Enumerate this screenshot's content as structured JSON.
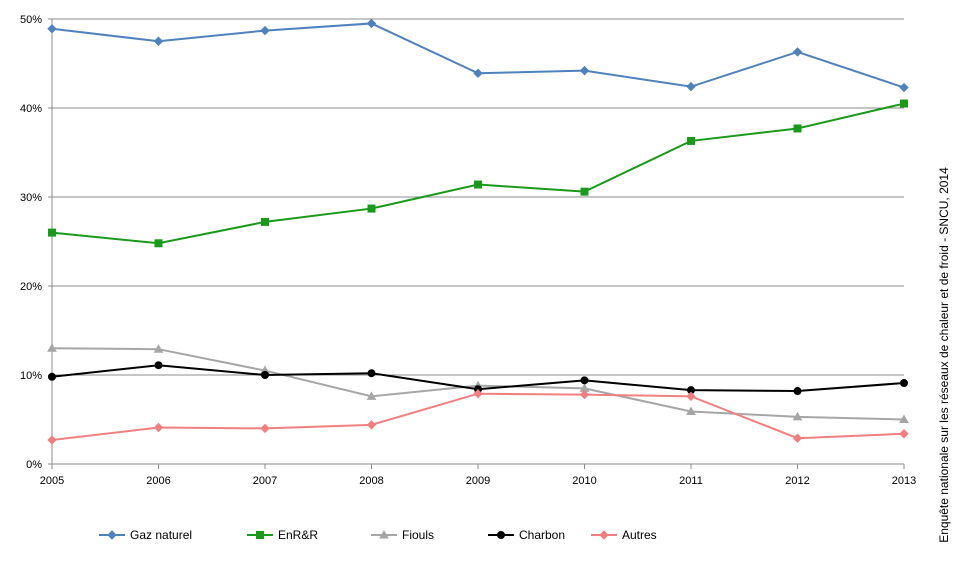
{
  "chart_data": {
    "type": "line",
    "title": "",
    "xlabel": "",
    "ylabel": "",
    "x": [
      "2005",
      "2006",
      "2007",
      "2008",
      "2009",
      "2010",
      "2011",
      "2012",
      "2013"
    ],
    "y_ticks": [
      "0%",
      "10%",
      "20%",
      "30%",
      "40%",
      "50%"
    ],
    "ylim": [
      0,
      50
    ],
    "grid": true,
    "legend_position": "bottom",
    "series": [
      {
        "name": "Gaz naturel",
        "color": "#4f81bd",
        "marker": "diamond",
        "values": [
          48.9,
          47.5,
          48.7,
          49.5,
          43.9,
          44.2,
          42.4,
          46.3,
          42.3
        ]
      },
      {
        "name": "EnR&R",
        "color": "#1a9a1a",
        "marker": "square",
        "values": [
          26.0,
          24.8,
          27.2,
          28.7,
          31.4,
          30.6,
          36.3,
          37.7,
          40.5
        ]
      },
      {
        "name": "Fiouls",
        "color": "#a6a6a6",
        "marker": "triangle",
        "values": [
          13.0,
          12.9,
          10.5,
          7.6,
          8.8,
          8.5,
          5.9,
          5.3,
          5.0
        ]
      },
      {
        "name": "Charbon",
        "color": "#000000",
        "marker": "circle",
        "values": [
          9.8,
          11.1,
          10.0,
          10.2,
          8.4,
          9.4,
          8.3,
          8.2,
          9.1
        ]
      },
      {
        "name": "Autres",
        "color": "#f08080",
        "marker": "diamond",
        "values": [
          2.7,
          4.1,
          4.0,
          4.4,
          7.9,
          7.8,
          7.6,
          2.9,
          3.4
        ]
      }
    ],
    "source": "Enquête nationale sur les réseaux de chaleur et de  froid - SNCU, 2014"
  }
}
